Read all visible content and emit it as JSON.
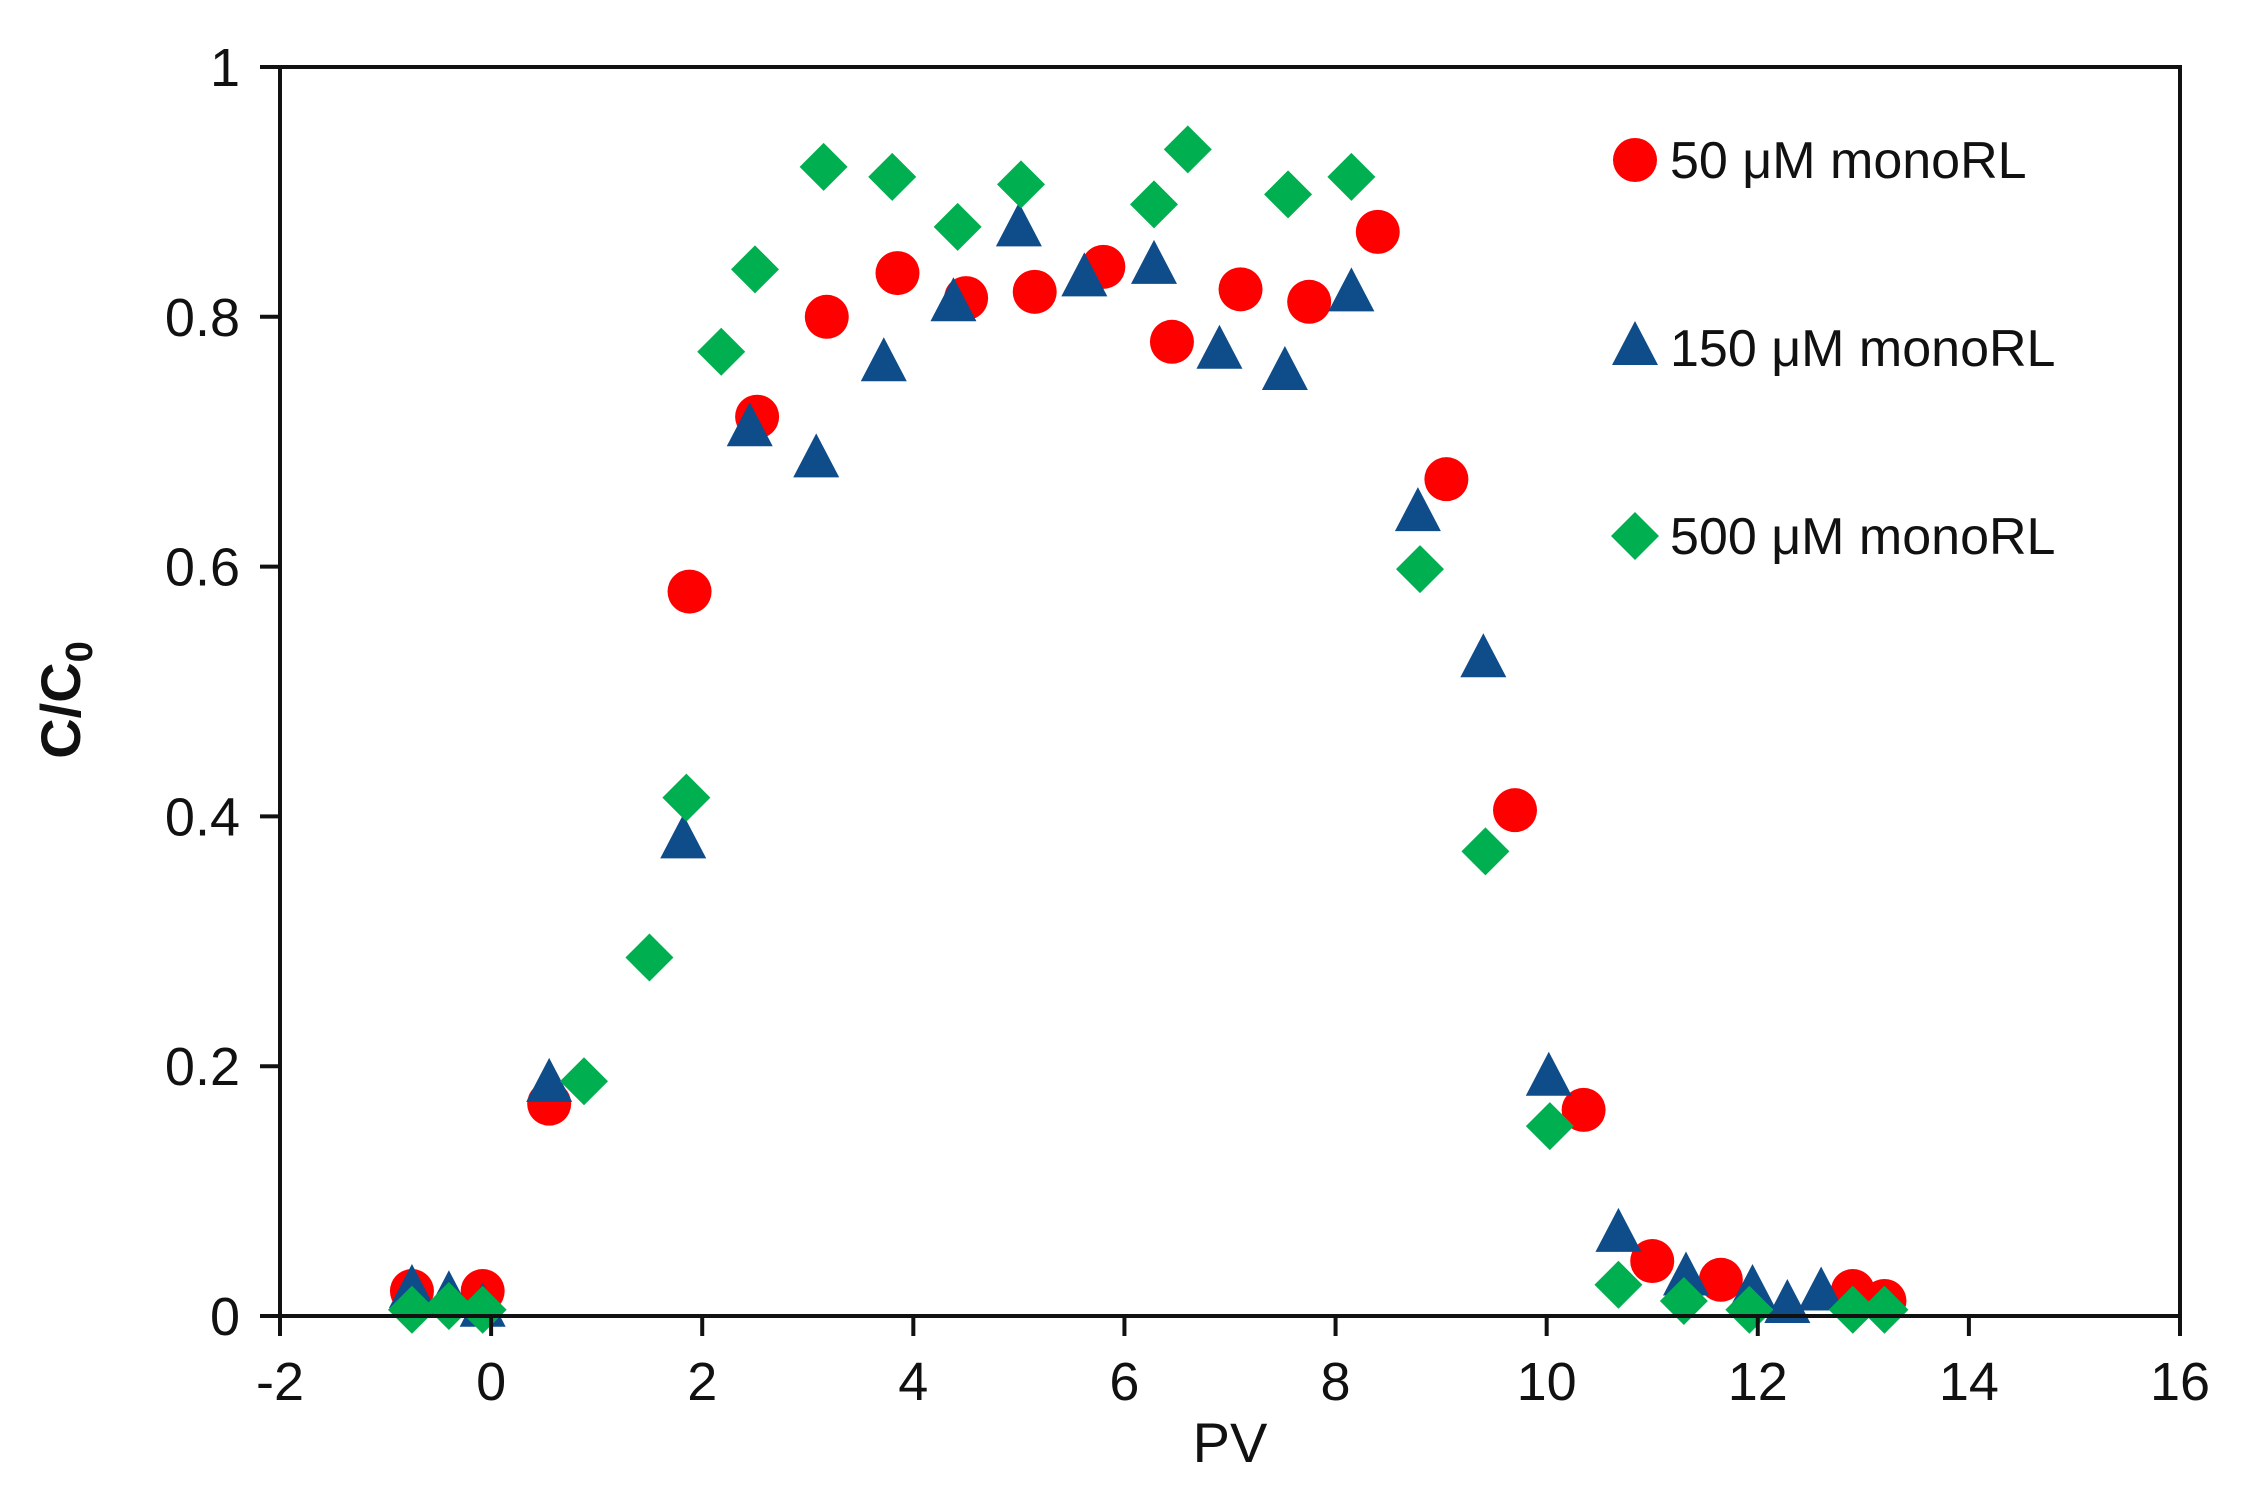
{
  "chart_data": {
    "type": "scatter",
    "title": "",
    "xlabel": "PV",
    "ylabel": "C/C",
    "ylabel_subscript": "0",
    "xlim": [
      -2,
      16
    ],
    "ylim": [
      0,
      1
    ],
    "xticks": [
      -2,
      0,
      2,
      4,
      6,
      8,
      10,
      12,
      14,
      16
    ],
    "yticks": [
      0,
      0.2,
      0.4,
      0.6,
      0.8,
      1
    ],
    "xtick_labels": [
      "-2",
      "0",
      "2",
      "4",
      "6",
      "8",
      "10",
      "12",
      "14",
      "16"
    ],
    "ytick_labels": [
      "0",
      "0.2",
      "0.4",
      "0.6",
      "0.8",
      "1"
    ],
    "grid": false,
    "legend_position": "top-right",
    "series": [
      {
        "name": "50 μM monoRL",
        "marker": "circle",
        "color": "#ff0000",
        "points": [
          [
            -0.75,
            0.02
          ],
          [
            -0.08,
            0.02
          ],
          [
            0.55,
            0.17
          ],
          [
            1.88,
            0.58
          ],
          [
            2.52,
            0.72
          ],
          [
            3.18,
            0.8
          ],
          [
            3.85,
            0.835
          ],
          [
            4.5,
            0.815
          ],
          [
            5.15,
            0.82
          ],
          [
            5.8,
            0.84
          ],
          [
            6.45,
            0.78
          ],
          [
            7.1,
            0.822
          ],
          [
            7.75,
            0.812
          ],
          [
            8.4,
            0.868
          ],
          [
            9.05,
            0.67
          ],
          [
            9.7,
            0.405
          ],
          [
            10.35,
            0.165
          ],
          [
            11.0,
            0.044
          ],
          [
            11.65,
            0.029
          ],
          [
            12.9,
            0.02
          ],
          [
            13.2,
            0.012
          ]
        ]
      },
      {
        "name": "150 μM monoRL",
        "marker": "triangle",
        "color": "#0e4c8a",
        "points": [
          [
            -0.75,
            0.02
          ],
          [
            -0.4,
            0.015
          ],
          [
            -0.08,
            0.005
          ],
          [
            0.55,
            0.185
          ],
          [
            1.82,
            0.38
          ],
          [
            2.45,
            0.71
          ],
          [
            3.08,
            0.685
          ],
          [
            3.72,
            0.762
          ],
          [
            4.38,
            0.81
          ],
          [
            5.0,
            0.87
          ],
          [
            5.62,
            0.83
          ],
          [
            6.28,
            0.84
          ],
          [
            6.9,
            0.772
          ],
          [
            7.52,
            0.755
          ],
          [
            8.15,
            0.818
          ],
          [
            8.78,
            0.642
          ],
          [
            9.4,
            0.525
          ],
          [
            10.02,
            0.19
          ],
          [
            10.68,
            0.065
          ],
          [
            11.32,
            0.03
          ],
          [
            11.95,
            0.02
          ],
          [
            12.28,
            0.008
          ],
          [
            12.6,
            0.018
          ]
        ]
      },
      {
        "name": "500 μM monoRL",
        "marker": "diamond",
        "color": "#00b050",
        "points": [
          [
            -0.75,
            0.005
          ],
          [
            -0.4,
            0.008
          ],
          [
            -0.08,
            0.005
          ],
          [
            0.88,
            0.188
          ],
          [
            1.5,
            0.287
          ],
          [
            1.85,
            0.415
          ],
          [
            2.18,
            0.772
          ],
          [
            2.5,
            0.838
          ],
          [
            3.15,
            0.92
          ],
          [
            3.8,
            0.912
          ],
          [
            4.42,
            0.872
          ],
          [
            5.02,
            0.906
          ],
          [
            6.28,
            0.89
          ],
          [
            6.6,
            0.934
          ],
          [
            7.55,
            0.898
          ],
          [
            8.15,
            0.912
          ],
          [
            8.8,
            0.598
          ],
          [
            9.42,
            0.372
          ],
          [
            10.03,
            0.152
          ],
          [
            10.68,
            0.025
          ],
          [
            11.3,
            0.012
          ],
          [
            11.92,
            0.005
          ],
          [
            12.9,
            0.005
          ],
          [
            13.2,
            0.005
          ]
        ]
      }
    ]
  }
}
